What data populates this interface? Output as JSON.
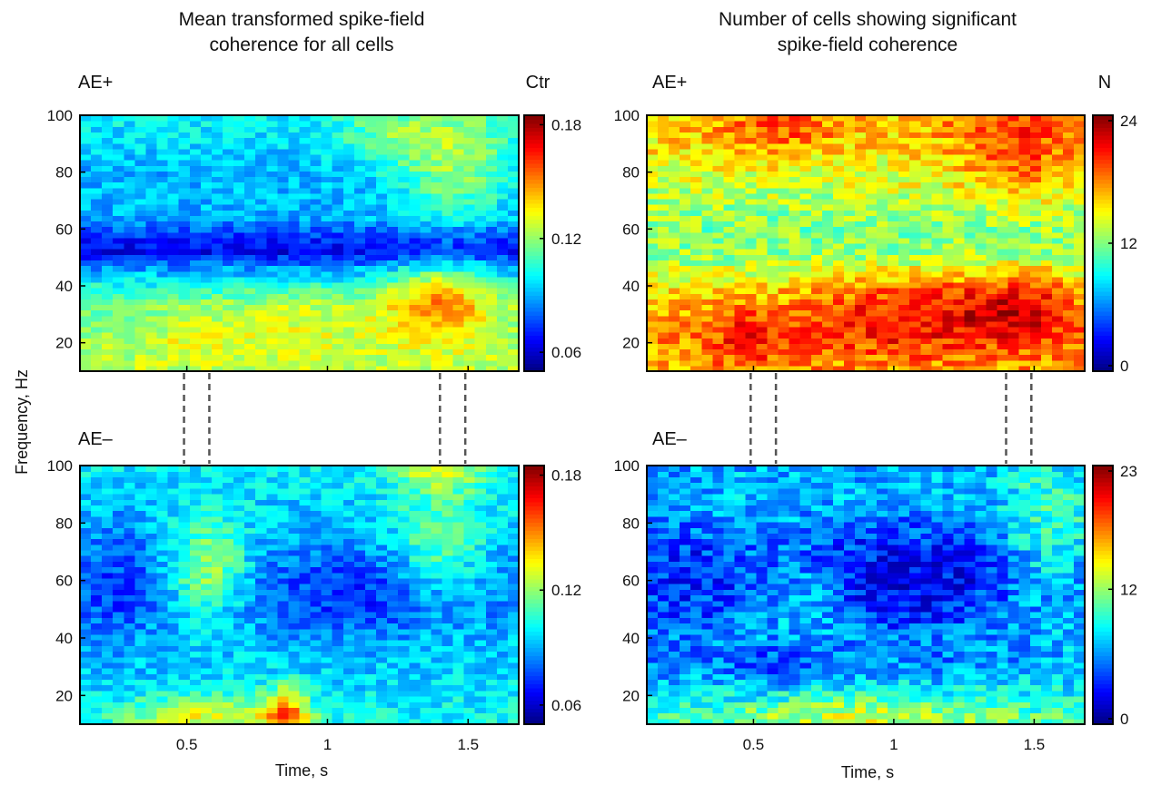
{
  "figure": {
    "left_title": [
      "Mean transformed spike-field",
      "coherence for all cells"
    ],
    "right_title": [
      "Number of cells showing significant",
      "spike-field coherence"
    ],
    "ylabel": "Frequency, Hz",
    "xlabel": "Time, s",
    "left_units": "Ctr",
    "right_units": "N"
  },
  "chart_data": [
    {
      "type": "heatmap",
      "panel": "top-left",
      "condition": "AE+",
      "colorbar_label": "Ctr",
      "colorbar_ticks": [
        "0.06",
        "0.12",
        "0.18"
      ],
      "clim": [
        0.05,
        0.185
      ],
      "xlim": [
        0.12,
        1.68
      ],
      "ylim": [
        10,
        100
      ],
      "xticks": [
        "0.5",
        "1",
        "1.5"
      ],
      "yticks": [
        "20",
        "40",
        "60",
        "80",
        "100"
      ],
      "xlabel": "",
      "ylabel": "Frequency, Hz",
      "colormap": "jet",
      "pattern": [
        [
          12,
          0.125
        ],
        [
          20,
          0.122
        ],
        [
          28,
          0.118
        ],
        [
          34,
          0.115
        ],
        [
          40,
          0.103
        ],
        [
          46,
          0.088
        ],
        [
          52,
          0.065
        ],
        [
          58,
          0.074
        ],
        [
          64,
          0.09
        ],
        [
          72,
          0.092
        ],
        [
          80,
          0.09
        ],
        [
          90,
          0.096
        ],
        [
          100,
          0.1
        ]
      ],
      "hotspots": [
        [
          1.4,
          35,
          0.035,
          0.14,
          10
        ],
        [
          0.88,
          27,
          0.012,
          0.22,
          8
        ],
        [
          1.45,
          84,
          0.03,
          0.14,
          14
        ],
        [
          0.5,
          22,
          0.01,
          0.08,
          6
        ],
        [
          1.2,
          92,
          0.015,
          0.12,
          8
        ]
      ],
      "noise": 0.009,
      "seed": 11,
      "connectors": [
        0.49,
        0.58,
        1.4,
        1.49
      ]
    },
    {
      "type": "heatmap",
      "panel": "bottom-left",
      "condition": "AE–",
      "colorbar_label": "",
      "colorbar_ticks": [
        "0.06",
        "0.12",
        "0.18"
      ],
      "clim": [
        0.05,
        0.185
      ],
      "xlim": [
        0.12,
        1.68
      ],
      "ylim": [
        10,
        100
      ],
      "xticks": [
        "0.5",
        "1",
        "1.5"
      ],
      "yticks": [
        "20",
        "40",
        "60",
        "80",
        "100"
      ],
      "xlabel": "Time, s",
      "ylabel": "",
      "colormap": "jet",
      "pattern": [
        [
          12,
          0.102
        ],
        [
          20,
          0.098
        ],
        [
          30,
          0.095
        ],
        [
          40,
          0.092
        ],
        [
          50,
          0.085
        ],
        [
          60,
          0.085
        ],
        [
          70,
          0.088
        ],
        [
          80,
          0.093
        ],
        [
          90,
          0.096
        ],
        [
          100,
          0.1
        ]
      ],
      "hotspots": [
        [
          0.85,
          13,
          0.05,
          0.06,
          7
        ],
        [
          0.55,
          13,
          0.03,
          0.18,
          5
        ],
        [
          0.58,
          64,
          0.035,
          0.1,
          12
        ],
        [
          1.4,
          72,
          0.025,
          0.12,
          14
        ],
        [
          1.4,
          98,
          0.025,
          0.12,
          5
        ],
        [
          1.1,
          55,
          -0.012,
          0.25,
          12
        ],
        [
          0.25,
          60,
          -0.01,
          0.1,
          20
        ]
      ],
      "noise": 0.01,
      "seed": 23
    },
    {
      "type": "heatmap",
      "panel": "top-right",
      "condition": "AE+",
      "colorbar_label": "N",
      "colorbar_ticks": [
        "0",
        "12",
        "24"
      ],
      "clim": [
        0,
        24
      ],
      "xlim": [
        0.12,
        1.68
      ],
      "ylim": [
        10,
        100
      ],
      "xticks": [
        "0.5",
        "1",
        "1.5"
      ],
      "yticks": [
        "20",
        "40",
        "60",
        "80",
        "100"
      ],
      "xlabel": "",
      "ylabel": "",
      "colormap": "jet",
      "pattern": [
        [
          12,
          17.0
        ],
        [
          20,
          17.5
        ],
        [
          30,
          17.0
        ],
        [
          40,
          15.5
        ],
        [
          50,
          12.5
        ],
        [
          60,
          12.0
        ],
        [
          70,
          13.0
        ],
        [
          80,
          14.5
        ],
        [
          90,
          15.5
        ],
        [
          100,
          16.5
        ]
      ],
      "hotspots": [
        [
          1.05,
          30,
          4.0,
          0.25,
          10
        ],
        [
          1.45,
          33,
          4.5,
          0.15,
          9
        ],
        [
          1.45,
          88,
          4.0,
          0.18,
          14
        ],
        [
          0.5,
          22,
          3.0,
          0.12,
          8
        ],
        [
          0.6,
          95,
          3.0,
          0.15,
          6
        ]
      ],
      "noise": 2.3,
      "seed": 37,
      "connectors": [
        0.49,
        0.58,
        1.4,
        1.49
      ]
    },
    {
      "type": "heatmap",
      "panel": "bottom-right",
      "condition": "AE–",
      "colorbar_label": "",
      "colorbar_ticks": [
        "0",
        "12",
        "23"
      ],
      "clim": [
        0,
        23
      ],
      "xlim": [
        0.12,
        1.68
      ],
      "ylim": [
        10,
        100
      ],
      "xticks": [
        "0.5",
        "1",
        "1.5"
      ],
      "yticks": [
        "20",
        "40",
        "60",
        "80",
        "100"
      ],
      "xlabel": "Time, s",
      "ylabel": "",
      "colormap": "jet",
      "pattern": [
        [
          12,
          10.5
        ],
        [
          20,
          8.5
        ],
        [
          30,
          6.5
        ],
        [
          40,
          7.0
        ],
        [
          50,
          6.0
        ],
        [
          60,
          5.5
        ],
        [
          70,
          5.8
        ],
        [
          80,
          7.0
        ],
        [
          90,
          7.5
        ],
        [
          100,
          7.0
        ]
      ],
      "hotspots": [
        [
          1.05,
          62,
          -3.0,
          0.3,
          18
        ],
        [
          0.25,
          60,
          -2.0,
          0.12,
          22
        ],
        [
          1.55,
          75,
          3.5,
          0.12,
          18
        ],
        [
          0.7,
          55,
          2.5,
          0.1,
          10
        ],
        [
          0.9,
          14,
          3.0,
          0.3,
          6
        ],
        [
          0.6,
          30,
          -2.5,
          0.12,
          6
        ]
      ],
      "noise": 2.3,
      "seed": 53
    }
  ]
}
